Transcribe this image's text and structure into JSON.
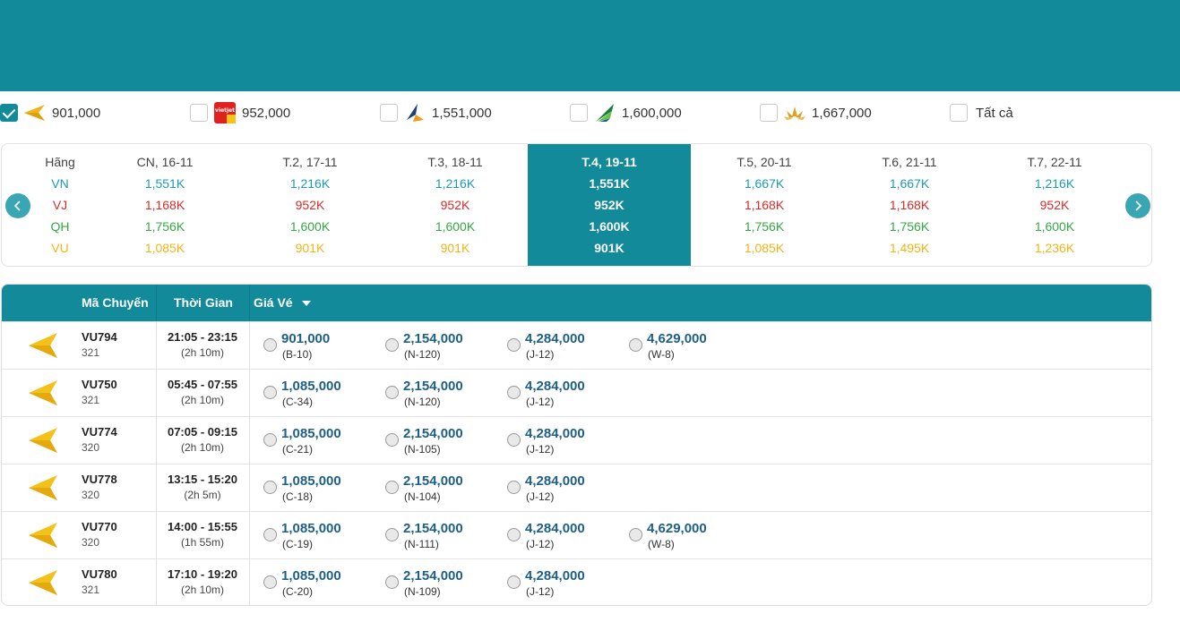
{
  "colors": {
    "accent": "#138a99",
    "vn": "#1d9bb6",
    "vj": "#d92b2b",
    "qh": "#35a844",
    "vu": "#f2b418",
    "price": "#1d5f86"
  },
  "airline_filters": [
    {
      "logo": "vietravel-plane-icon",
      "price": "901,000",
      "checked": true
    },
    {
      "logo": "vietjet-logo-icon",
      "price": "952,000",
      "checked": false
    },
    {
      "logo": "pacific-airlines-logo-icon",
      "price": "1,551,000",
      "checked": false
    },
    {
      "logo": "bamboo-airways-logo-icon",
      "price": "1,600,000",
      "checked": false
    },
    {
      "logo": "vietnam-airlines-lotus-icon",
      "price": "1,667,000",
      "checked": false
    }
  ],
  "filter_all_label": "Tất cả",
  "date_grid": {
    "airline_header": "Hãng",
    "airlines": [
      "VN",
      "VJ",
      "QH",
      "VU"
    ],
    "dates": [
      {
        "label": "CN, 16-11",
        "prices": [
          "1,551K",
          "1,168K",
          "1,756K",
          "1,085K"
        ],
        "selected": false
      },
      {
        "label": "T.2, 17-11",
        "prices": [
          "1,216K",
          "952K",
          "1,600K",
          "901K"
        ],
        "selected": false
      },
      {
        "label": "T.3, 18-11",
        "prices": [
          "1,216K",
          "952K",
          "1,600K",
          "901K"
        ],
        "selected": false
      },
      {
        "label": "T.4, 19-11",
        "prices": [
          "1,551K",
          "952K",
          "1,600K",
          "901K"
        ],
        "selected": true
      },
      {
        "label": "T.5, 20-11",
        "prices": [
          "1,667K",
          "1,168K",
          "1,756K",
          "1,085K"
        ],
        "selected": false
      },
      {
        "label": "T.6, 21-11",
        "prices": [
          "1,667K",
          "1,168K",
          "1,756K",
          "1,495K"
        ],
        "selected": false
      },
      {
        "label": "T.7, 22-11",
        "prices": [
          "1,216K",
          "952K",
          "1,600K",
          "1,236K"
        ],
        "selected": false
      }
    ]
  },
  "table": {
    "headers": {
      "code": "Mã Chuyến",
      "time": "Thời Gian",
      "fare": "Giá Vé"
    },
    "rows": [
      {
        "code": "VU794",
        "aircraft": "321",
        "time": "21:05 - 23:15",
        "duration": "(2h 10m)",
        "fares": [
          {
            "price": "901,000",
            "cls": "(B-10)"
          },
          {
            "price": "2,154,000",
            "cls": "(N-120)"
          },
          {
            "price": "4,284,000",
            "cls": "(J-12)"
          },
          {
            "price": "4,629,000",
            "cls": "(W-8)"
          }
        ]
      },
      {
        "code": "VU750",
        "aircraft": "321",
        "time": "05:45 - 07:55",
        "duration": "(2h 10m)",
        "fares": [
          {
            "price": "1,085,000",
            "cls": "(C-34)"
          },
          {
            "price": "2,154,000",
            "cls": "(N-120)"
          },
          {
            "price": "4,284,000",
            "cls": "(J-12)"
          }
        ]
      },
      {
        "code": "VU774",
        "aircraft": "320",
        "time": "07:05 - 09:15",
        "duration": "(2h 10m)",
        "fares": [
          {
            "price": "1,085,000",
            "cls": "(C-21)"
          },
          {
            "price": "2,154,000",
            "cls": "(N-105)"
          },
          {
            "price": "4,284,000",
            "cls": "(J-12)"
          }
        ]
      },
      {
        "code": "VU778",
        "aircraft": "320",
        "time": "13:15 - 15:20",
        "duration": "(2h 5m)",
        "fares": [
          {
            "price": "1,085,000",
            "cls": "(C-18)"
          },
          {
            "price": "2,154,000",
            "cls": "(N-104)"
          },
          {
            "price": "4,284,000",
            "cls": "(J-12)"
          }
        ]
      },
      {
        "code": "VU770",
        "aircraft": "320",
        "time": "14:00 - 15:55",
        "duration": "(1h 55m)",
        "fares": [
          {
            "price": "1,085,000",
            "cls": "(C-19)"
          },
          {
            "price": "2,154,000",
            "cls": "(N-111)"
          },
          {
            "price": "4,284,000",
            "cls": "(J-12)"
          },
          {
            "price": "4,629,000",
            "cls": "(W-8)"
          }
        ]
      },
      {
        "code": "VU780",
        "aircraft": "321",
        "time": "17:10 - 19:20",
        "duration": "(2h 10m)",
        "fares": [
          {
            "price": "1,085,000",
            "cls": "(C-20)"
          },
          {
            "price": "2,154,000",
            "cls": "(N-109)"
          },
          {
            "price": "4,284,000",
            "cls": "(J-12)"
          }
        ]
      }
    ]
  }
}
